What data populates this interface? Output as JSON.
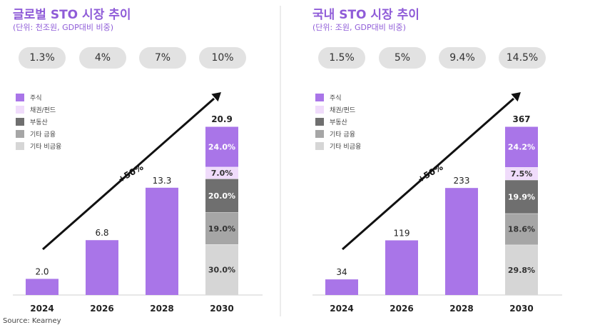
{
  "legend_colors": [
    "#a975e8",
    "#f0dcfb",
    "#6f6f6f",
    "#a6a6a6",
    "#d6d6d6"
  ],
  "arrow_label": "+50%",
  "source": "Source: Kearney",
  "chart_data": [
    {
      "type": "bar",
      "title": "글로벌 STO 시장 추이",
      "subtitle": "(단위: 천조원, GDP대비 비중)",
      "categories": [
        "2024",
        "2026",
        "2028",
        "2030"
      ],
      "pills": [
        "1.3%",
        "4%",
        "7%",
        "10%"
      ],
      "values": [
        2.0,
        6.8,
        13.3,
        20.9
      ],
      "value_labels": [
        "2.0",
        "6.8",
        "13.3",
        "20.9"
      ],
      "ylim": [
        0,
        22
      ],
      "legend": [
        "주식",
        "채권/펀드",
        "부동산",
        "기타 금융",
        "기타 비금융"
      ],
      "stack_2030": {
        "bottom_to_top": [
          {
            "name": "기타 비금융",
            "label": "30.0%",
            "value": 30.0
          },
          {
            "name": "기타 금융",
            "label": "19.0%",
            "value": 19.0
          },
          {
            "name": "부동산",
            "label": "20.0%",
            "value": 20.0
          },
          {
            "name": "채권/펀드",
            "label": "7.0%",
            "value": 7.0
          },
          {
            "name": "주식",
            "label": "24.0%",
            "value": 24.0
          }
        ]
      }
    },
    {
      "type": "bar",
      "title": "국내 STO 시장 추이",
      "subtitle": "(단위: 조원, GDP대비 비중)",
      "categories": [
        "2024",
        "2026",
        "2028",
        "2030"
      ],
      "pills": [
        "1.5%",
        "5%",
        "9.4%",
        "14.5%"
      ],
      "values": [
        34,
        119,
        233,
        367
      ],
      "value_labels": [
        "34",
        "119",
        "233",
        "367"
      ],
      "ylim": [
        0,
        386
      ],
      "legend": [
        "주식",
        "채권/펀드",
        "부동산",
        "기타 금융",
        "기타 비금융"
      ],
      "stack_2030": {
        "bottom_to_top": [
          {
            "name": "기타 비금융",
            "label": "29.8%",
            "value": 29.8
          },
          {
            "name": "기타 금융",
            "label": "18.6%",
            "value": 18.6
          },
          {
            "name": "부동산",
            "label": "19.9%",
            "value": 19.9
          },
          {
            "name": "채권/펀드",
            "label": "7.5%",
            "value": 7.5
          },
          {
            "name": "주식",
            "label": "24.2%",
            "value": 24.2
          }
        ]
      }
    }
  ]
}
